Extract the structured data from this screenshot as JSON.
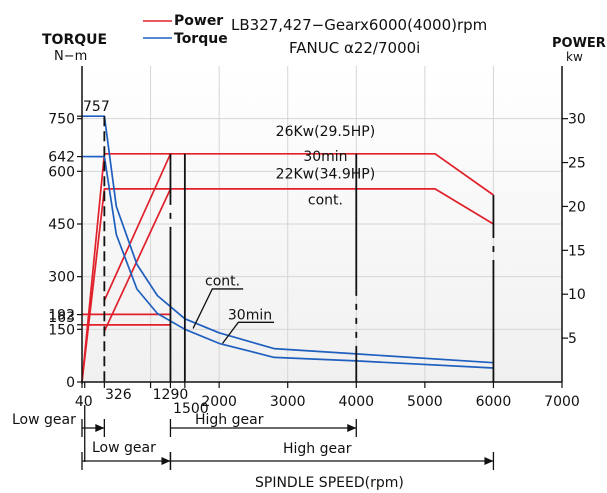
{
  "chart_data": {
    "type": "line",
    "title": "LB327,427−Gearx6000(4000)rpm",
    "subtitle": "FANUC α22/7000i",
    "legend": {
      "placement": "top-left",
      "entries": [
        {
          "name": "Power",
          "color": "#e0202a"
        },
        {
          "name": "Torque",
          "color": "#1f5fbf"
        }
      ]
    },
    "left_axis": {
      "label": "TORQUE",
      "unit": "N−m",
      "range": [
        0,
        900
      ],
      "ticks": [
        0,
        150,
        300,
        450,
        600,
        750
      ],
      "marked_values": [
        163,
        192,
        642,
        757
      ]
    },
    "right_axis": {
      "label": "POWER",
      "unit": "kw",
      "range": [
        0,
        36
      ],
      "ticks": [
        5,
        10,
        15,
        20,
        25,
        30
      ]
    },
    "x_axis": {
      "label": "SPINDLE SPEED(rpm)",
      "range": [
        0,
        7000
      ],
      "ticks": [
        0,
        1000,
        2000,
        3000,
        4000,
        5000,
        6000,
        7000
      ],
      "tick_labels": [
        "",
        "",
        "2000",
        "3000",
        "4000",
        "5000",
        "6000",
        "7000"
      ],
      "marked_values": [
        {
          "x": 40,
          "label": "40"
        },
        {
          "x": 326,
          "label": "326"
        },
        {
          "x": 1290,
          "label": "1290"
        },
        {
          "x": 1500,
          "label": "1500"
        }
      ]
    },
    "grid": true,
    "series": [
      {
        "name": "Power",
        "axis": "right",
        "style": "solid",
        "color": "#e0202a",
        "curves": [
          {
            "x": [
              0,
              326,
              5150,
              6000
            ],
            "y": [
              0,
              26,
              26,
              21.3
            ]
          },
          {
            "x": [
              0,
              326,
              5150,
              6000
            ],
            "y": [
              0,
              22,
              22,
              18
            ]
          },
          {
            "x": [
              326,
              1290
            ],
            "y": [
              9.3,
              26
            ]
          },
          {
            "x": [
              326,
              1290
            ],
            "y": [
              5.8,
              22
            ]
          },
          {
            "x": [
              0,
              1290
            ],
            "y": [
              7.7,
              7.7
            ]
          },
          {
            "x": [
              0,
              1290
            ],
            "y": [
              6.5,
              6.5
            ]
          }
        ]
      },
      {
        "name": "Torque",
        "axis": "left",
        "style": "solid",
        "color": "#1f5fbf",
        "curves": [
          {
            "x": [
              0,
              326,
              500,
              800,
              1100,
              1500,
              2000,
              2800,
              4000,
              6000
            ],
            "y": [
              757,
              757,
              500,
              335,
              246,
              180,
              140,
              95,
              80,
              55
            ]
          },
          {
            "x": [
              0,
              326,
              500,
              800,
              1100,
              1500,
              2000,
              2800,
              4000,
              6000
            ],
            "y": [
              642,
              642,
              420,
              265,
              195,
              150,
              110,
              70,
              60,
              40
            ]
          }
        ]
      }
    ],
    "annotations": [
      {
        "text": "26Kw(29.5HP)",
        "x": 3550,
        "y": 28.0
      },
      {
        "text": "30min",
        "x": 3550,
        "y": 25.2
      },
      {
        "text": "22Kw(34.9HP)",
        "x": 3550,
        "y": 23.2
      },
      {
        "text": "cont.",
        "x": 3550,
        "y": 20.2
      },
      {
        "text": "cont.",
        "x": 2050,
        "y": 11.0
      },
      {
        "text": "30min",
        "x": 2450,
        "y": 7.1
      }
    ],
    "gear_ranges": {
      "row1": [
        {
          "label": "Low gear",
          "from": 0,
          "to": 326
        },
        {
          "label": "High gear",
          "from": 1290,
          "to": 4000
        }
      ],
      "row2": [
        {
          "label": "Low gear",
          "from": 0,
          "to": 1290
        },
        {
          "label": "High gear",
          "from": 1290,
          "to": 6000
        }
      ]
    }
  }
}
